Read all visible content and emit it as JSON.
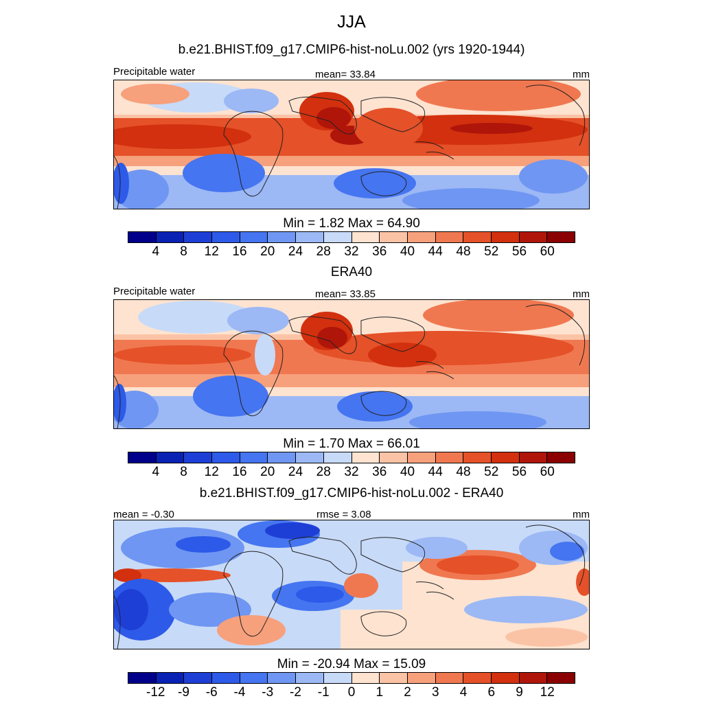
{
  "title": "JJA",
  "colors": {
    "precip": [
      "#00008b",
      "#0a22b4",
      "#1e3fd6",
      "#2d5ae8",
      "#4575f0",
      "#6f96f2",
      "#9cb8f5",
      "#c7daf8",
      "#fde3d0",
      "#fbc3a6",
      "#f7a07c",
      "#f07850",
      "#e55128",
      "#d2300e",
      "#b0150a",
      "#8b0000"
    ],
    "diff": [
      "#00008b",
      "#0a22b4",
      "#1e3fd6",
      "#2d5ae8",
      "#4575f0",
      "#6f96f2",
      "#9cb8f5",
      "#c7daf8",
      "#fde3d0",
      "#fbc3a6",
      "#f7a07c",
      "#f07850",
      "#e55128",
      "#d2300e",
      "#b0150a",
      "#8b0000"
    ]
  },
  "panels": [
    {
      "title": "b.e21.BHIST.f09_g17.CMIP6-hist-noLu.002 (yrs 1920-1944)",
      "left_label": "Precipitable water",
      "center_label": "mean=  33.84",
      "right_label": "mm",
      "minmax": "Min =   1.82 Max =  64.90",
      "ticks": [
        "4",
        "8",
        "12",
        "16",
        "20",
        "24",
        "28",
        "32",
        "36",
        "40",
        "44",
        "48",
        "52",
        "56",
        "60"
      ],
      "palette": "precip"
    },
    {
      "title": "ERA40",
      "left_label": "Precipitable water",
      "center_label": "mean=  33.85",
      "right_label": "mm",
      "minmax": "Min =   1.70 Max =  66.01",
      "ticks": [
        "4",
        "8",
        "12",
        "16",
        "20",
        "24",
        "28",
        "32",
        "36",
        "40",
        "44",
        "48",
        "52",
        "56",
        "60"
      ],
      "palette": "precip"
    },
    {
      "title": "b.e21.BHIST.f09_g17.CMIP6-hist-noLu.002 - ERA40",
      "left_label": "mean =  -0.30",
      "center_label": "rmse =   3.08",
      "right_label": "mm",
      "minmax": "Min = -20.94 Max =  15.09",
      "ticks": [
        "-12",
        "-9",
        "-6",
        "-4",
        "-3",
        "-2",
        "-1",
        "0",
        "1",
        "2",
        "3",
        "4",
        "6",
        "9",
        "12"
      ],
      "palette": "diff"
    }
  ]
}
